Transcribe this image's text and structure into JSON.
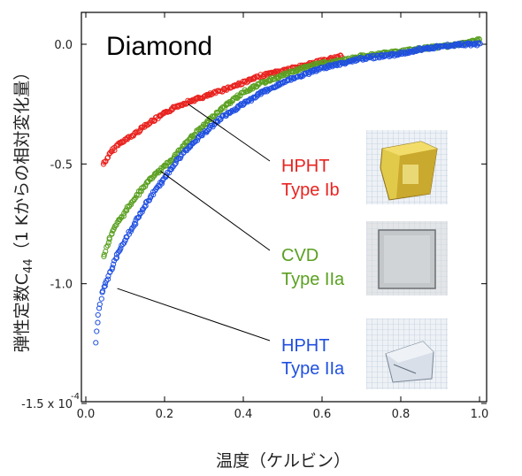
{
  "colors": {
    "red": "#e8231f",
    "green": "#5aa021",
    "blue": "#1f4fe0",
    "frame": "#000000"
  },
  "chart_data": {
    "type": "scatter",
    "title": "Diamond",
    "xlabel": "温度（ケルビン）",
    "ylabel_main": "弾性定数C",
    "ylabel_sub": "44",
    "ylabel_rest": "（1 Kからの相対変化量）",
    "xlim": [
      0.0,
      1.0
    ],
    "ylim": [
      -1.5,
      0.1
    ],
    "x_ticks": [
      0.0,
      0.2,
      0.4,
      0.6,
      0.8,
      1.0
    ],
    "x_tick_labels": [
      "0.0",
      "0.2",
      "0.4",
      "0.6",
      "0.8",
      "1.0"
    ],
    "y_ticks": [
      0.0,
      -0.5,
      -1.0,
      -1.5
    ],
    "y_tick_labels": [
      "0.0",
      "-0.5",
      "-1.0",
      "-1.5 x 10"
    ],
    "y_multiplier_exponent": "-4",
    "marker": "open-circle",
    "series": [
      {
        "name_line1": "HPHT",
        "name_line2": "Type Ib",
        "color": "#e8231f",
        "x": [
          0.045,
          0.05,
          0.06,
          0.08,
          0.1,
          0.12,
          0.15,
          0.18,
          0.2,
          0.23,
          0.26,
          0.3,
          0.35,
          0.4,
          0.45,
          0.5,
          0.55,
          0.6,
          0.65
        ],
        "y": [
          -0.5,
          -0.49,
          -0.46,
          -0.42,
          -0.4,
          -0.38,
          -0.34,
          -0.31,
          -0.29,
          -0.26,
          -0.24,
          -0.22,
          -0.19,
          -0.16,
          -0.13,
          -0.11,
          -0.09,
          -0.07,
          -0.05
        ],
        "annotation_anchor": [
          0.26,
          -0.25
        ],
        "label_anchor": [
          0.47,
          -0.48
        ]
      },
      {
        "name_line1": "CVD",
        "name_line2": "Type IIa",
        "color": "#5aa021",
        "x": [
          0.045,
          0.05,
          0.06,
          0.08,
          0.1,
          0.12,
          0.14,
          0.16,
          0.18,
          0.2,
          0.23,
          0.26,
          0.3,
          0.33,
          0.36,
          0.4,
          0.45,
          0.5,
          0.55,
          0.6,
          0.65,
          0.7,
          0.75,
          0.8,
          0.85,
          0.9,
          0.95,
          1.0
        ],
        "y": [
          -0.89,
          -0.86,
          -0.81,
          -0.75,
          -0.7,
          -0.65,
          -0.61,
          -0.57,
          -0.54,
          -0.51,
          -0.46,
          -0.4,
          -0.34,
          -0.29,
          -0.25,
          -0.2,
          -0.16,
          -0.13,
          -0.1,
          -0.08,
          -0.07,
          -0.05,
          -0.04,
          -0.03,
          -0.02,
          -0.01,
          0.0,
          0.02
        ],
        "annotation_anchor": [
          0.19,
          -0.53
        ],
        "label_anchor": [
          0.47,
          -0.97
        ]
      },
      {
        "name_line1": "HPHT",
        "name_line2": "Type IIa",
        "color": "#1f4fe0",
        "x": [
          0.025,
          0.027,
          0.03,
          0.035,
          0.04,
          0.05,
          0.06,
          0.07,
          0.08,
          0.1,
          0.12,
          0.14,
          0.16,
          0.18,
          0.2,
          0.23,
          0.26,
          0.3,
          0.35,
          0.4,
          0.45,
          0.5,
          0.55,
          0.6,
          0.65,
          0.7,
          0.75,
          0.8,
          0.85,
          0.9,
          0.95,
          1.0
        ],
        "y": [
          -1.25,
          -1.21,
          -1.16,
          -1.1,
          -1.05,
          -1.0,
          -0.96,
          -0.92,
          -0.88,
          -0.82,
          -0.76,
          -0.7,
          -0.65,
          -0.6,
          -0.56,
          -0.49,
          -0.43,
          -0.37,
          -0.3,
          -0.25,
          -0.2,
          -0.16,
          -0.13,
          -0.1,
          -0.08,
          -0.06,
          -0.05,
          -0.04,
          -0.02,
          -0.01,
          0.0,
          0.0
        ],
        "annotation_anchor": [
          0.08,
          -1.02
        ],
        "label_anchor": [
          0.47,
          -1.37
        ]
      }
    ]
  },
  "photos": [
    {
      "name": "hpht-type-ib-photo",
      "tint": "#d9c24a"
    },
    {
      "name": "cvd-type-iia-photo",
      "tint": "#c9ccce"
    },
    {
      "name": "hpht-type-iia-photo",
      "tint": "#cdd6e2"
    }
  ]
}
